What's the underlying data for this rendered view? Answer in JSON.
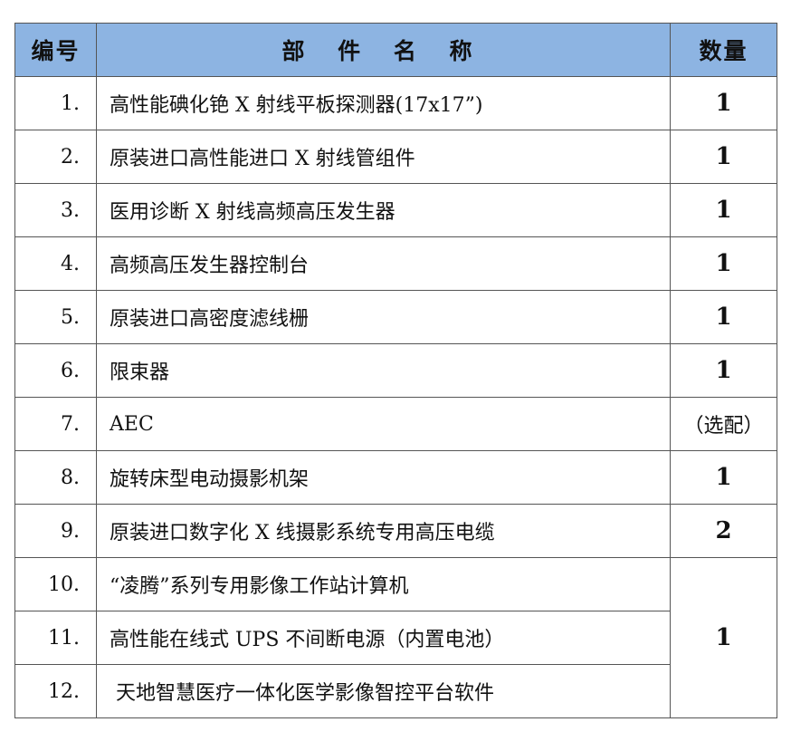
{
  "header": {
    "no": "编号",
    "name": "部 件 名 称",
    "qty": "数量"
  },
  "rows": [
    {
      "no": "1.",
      "name": "高性能碘化铯 X 射线平板探测器(17x17”)",
      "qty": "1"
    },
    {
      "no": "2.",
      "name": "原装进口高性能进口 X 射线管组件",
      "qty": "1"
    },
    {
      "no": "3.",
      "name": "医用诊断 X 射线高频高压发生器",
      "qty": "1"
    },
    {
      "no": "4.",
      "name": "高频高压发生器控制台",
      "qty": "1"
    },
    {
      "no": "5.",
      "name": "原装进口高密度滤线栅",
      "qty": "1"
    },
    {
      "no": "6.",
      "name": "限束器",
      "qty": "1"
    },
    {
      "no": "7.",
      "name": "AEC",
      "qty": "（选配）"
    },
    {
      "no": "8.",
      "name": "旋转床型电动摄影机架",
      "qty": "1"
    },
    {
      "no": "9.",
      "name": "原装进口数字化 X 线摄影系统专用高压电缆",
      "qty": "2"
    },
    {
      "no": "10.",
      "name": "“凌腾”系列专用影像工作站计算机",
      "qty": "1"
    },
    {
      "no": "11.",
      "name": "高性能在线式 UPS 不间断电源（内置电池）"
    },
    {
      "no": "12.",
      "name": " 天地智慧医疗一体化医学影像智控平台软件"
    }
  ],
  "colors": {
    "header_bg": "#8DB4E2",
    "border": "#555555"
  }
}
